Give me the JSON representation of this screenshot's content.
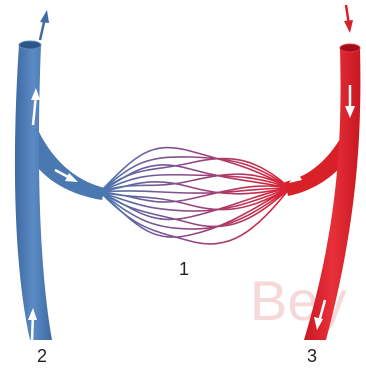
{
  "labels": {
    "capillaries": "1",
    "vein": "2",
    "artery": "3"
  },
  "watermark": "Bey"
}
